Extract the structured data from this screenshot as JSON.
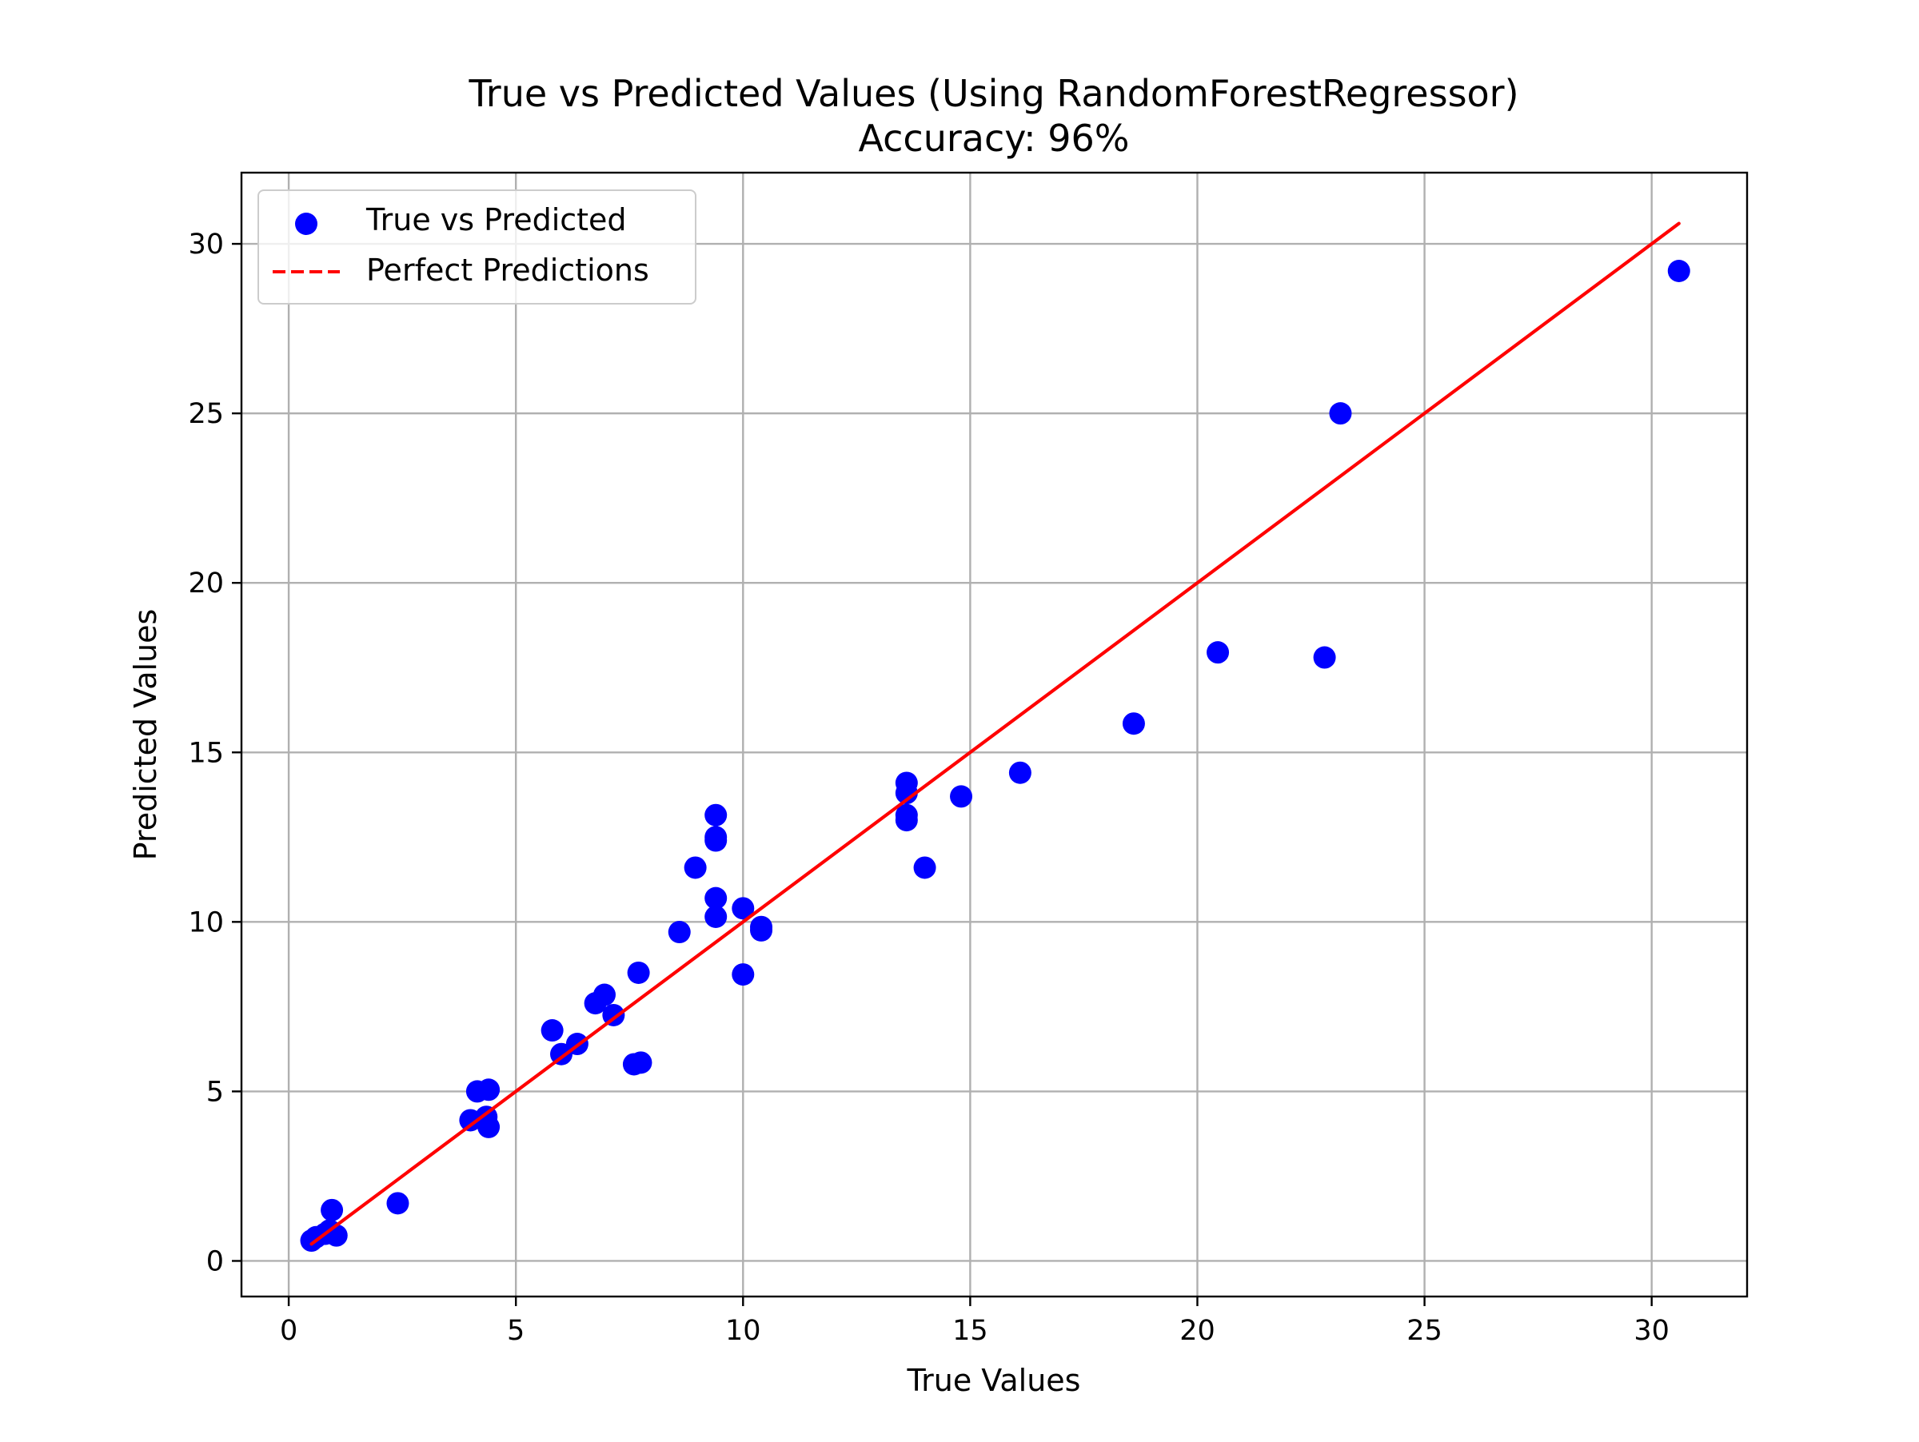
{
  "chart_data": {
    "type": "scatter",
    "title": "True vs Predicted Values (Using RandomForestRegressor)",
    "subtitle": "Accuracy: 96%",
    "xlabel": "True Values",
    "ylabel": "Predicted Values",
    "xlim": [
      -1.04,
      32.1
    ],
    "ylim": [
      -1.05,
      32.1
    ],
    "xticks": [
      0,
      5,
      10,
      15,
      20,
      25,
      30
    ],
    "yticks": [
      0,
      5,
      10,
      15,
      20,
      25,
      30
    ],
    "grid": true,
    "legend_position": "top-left",
    "series": [
      {
        "name": "True vs Predicted",
        "kind": "scatter",
        "color": "#0000ff",
        "points": [
          [
            0.5,
            0.6
          ],
          [
            0.6,
            0.7
          ],
          [
            0.8,
            0.8
          ],
          [
            0.9,
            0.9
          ],
          [
            0.95,
            1.5
          ],
          [
            1.05,
            0.75
          ],
          [
            2.4,
            1.7
          ],
          [
            4.0,
            4.15
          ],
          [
            4.15,
            5.0
          ],
          [
            4.35,
            4.25
          ],
          [
            4.4,
            5.05
          ],
          [
            4.4,
            3.95
          ],
          [
            5.8,
            6.8
          ],
          [
            6.0,
            6.1
          ],
          [
            6.35,
            6.4
          ],
          [
            6.75,
            7.6
          ],
          [
            6.95,
            7.85
          ],
          [
            7.15,
            7.25
          ],
          [
            7.6,
            5.8
          ],
          [
            7.75,
            5.85
          ],
          [
            7.7,
            8.5
          ],
          [
            8.6,
            9.7
          ],
          [
            8.95,
            11.6
          ],
          [
            9.4,
            13.15
          ],
          [
            9.4,
            12.4
          ],
          [
            9.4,
            12.5
          ],
          [
            9.4,
            10.7
          ],
          [
            9.4,
            10.15
          ],
          [
            10.0,
            10.4
          ],
          [
            10.0,
            8.45
          ],
          [
            10.4,
            9.75
          ],
          [
            10.4,
            9.85
          ],
          [
            13.6,
            14.1
          ],
          [
            13.6,
            13.8
          ],
          [
            13.6,
            13.15
          ],
          [
            13.6,
            13.0
          ],
          [
            14.0,
            11.6
          ],
          [
            14.8,
            13.7
          ],
          [
            16.1,
            14.4
          ],
          [
            18.6,
            15.85
          ],
          [
            20.45,
            17.95
          ],
          [
            22.8,
            17.8
          ],
          [
            23.15,
            25.0
          ],
          [
            30.6,
            29.2
          ]
        ]
      },
      {
        "name": "Perfect Predictions",
        "kind": "line",
        "color": "#ff0000",
        "dash": "dashed",
        "x": [
          0.5,
          30.6
        ],
        "y": [
          0.5,
          30.6
        ]
      }
    ]
  }
}
